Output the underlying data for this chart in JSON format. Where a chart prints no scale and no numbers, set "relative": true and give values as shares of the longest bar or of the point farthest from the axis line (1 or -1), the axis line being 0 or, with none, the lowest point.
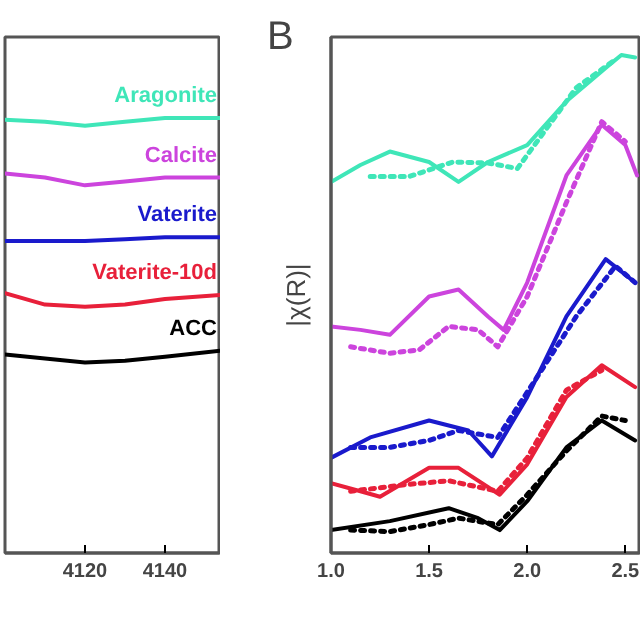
{
  "chart_data": [
    {
      "type": "line",
      "relative": true,
      "tick_labels": "x",
      "grid": false,
      "marker": "none",
      "line_style": "solid",
      "x": [
        4100,
        4110,
        4120,
        4130,
        4140,
        4154
      ],
      "xlim": [
        4100,
        4154
      ],
      "xticks": [
        4120,
        4140
      ],
      "series": [
        {
          "name": "Aragonite",
          "color": "#3fe6b8",
          "values": [
            0.996,
            0.991,
            0.982,
            0.991,
            1.0,
            1.0
          ]
        },
        {
          "name": "Calcite",
          "color": "#cc44dd",
          "values": [
            0.872,
            0.863,
            0.845,
            0.854,
            0.863,
            0.863
          ]
        },
        {
          "name": "Vaterite",
          "color": "#1a1acc",
          "values": [
            0.717,
            0.717,
            0.717,
            0.721,
            0.726,
            0.726
          ]
        },
        {
          "name": "Vaterite-10d",
          "color": "#e8203a",
          "values": [
            0.597,
            0.571,
            0.566,
            0.571,
            0.584,
            0.593
          ]
        },
        {
          "name": "ACC",
          "color": "#000000",
          "values": [
            0.456,
            0.447,
            0.438,
            0.442,
            0.451,
            0.465
          ]
        }
      ]
    },
    {
      "type": "line",
      "relative": true,
      "title": "B",
      "ylabel": "|χ(R)|",
      "tick_labels": "x",
      "grid": false,
      "marker": "none",
      "xlim": [
        1.0,
        2.58
      ],
      "xticks": [
        {
          "value": 1.0,
          "label": "1.0"
        },
        {
          "value": 1.5,
          "label": "1.5"
        },
        {
          "value": 2.0,
          "label": "2.0"
        },
        {
          "value": 2.5,
          "label": "2.5"
        }
      ],
      "series": [
        {
          "color": "#3fe6b8",
          "line_style": "solid",
          "x": [
            1.0,
            1.15,
            1.3,
            1.5,
            1.65,
            1.8,
            2.0,
            2.2,
            2.4,
            2.48,
            2.55
          ],
          "values": [
            0.745,
            0.779,
            0.806,
            0.785,
            0.745,
            0.785,
            0.819,
            0.907,
            0.974,
            1.0,
            0.995
          ]
        },
        {
          "color": "#3fe6b8",
          "line_style": "dotted",
          "x": [
            1.2,
            1.4,
            1.62,
            1.8,
            1.95,
            2.25,
            2.45
          ],
          "values": [
            0.756,
            0.756,
            0.785,
            0.783,
            0.772,
            0.934,
            0.991
          ]
        },
        {
          "color": "#cc44dd",
          "line_style": "solid",
          "x": [
            1.0,
            1.15,
            1.3,
            1.5,
            1.65,
            1.8,
            1.88,
            2.0,
            2.2,
            2.38,
            2.5,
            2.56
          ],
          "values": [
            0.455,
            0.448,
            0.438,
            0.515,
            0.529,
            0.475,
            0.448,
            0.543,
            0.758,
            0.86,
            0.819,
            0.758
          ]
        },
        {
          "color": "#cc44dd",
          "line_style": "dotted",
          "x": [
            1.1,
            1.3,
            1.45,
            1.6,
            1.75,
            1.85,
            2.0,
            2.2,
            2.38,
            2.5
          ],
          "values": [
            0.414,
            0.401,
            0.408,
            0.455,
            0.448,
            0.414,
            0.515,
            0.704,
            0.866,
            0.826
          ]
        },
        {
          "color": "#1a1acc",
          "line_style": "solid",
          "x": [
            1.0,
            1.2,
            1.5,
            1.7,
            1.82,
            2.0,
            2.2,
            2.4,
            2.55
          ],
          "values": [
            0.191,
            0.232,
            0.266,
            0.246,
            0.194,
            0.313,
            0.475,
            0.59,
            0.543
          ]
        },
        {
          "color": "#1a1acc",
          "line_style": "dotted",
          "x": [
            1.1,
            1.3,
            1.5,
            1.65,
            1.85,
            2.05,
            2.25,
            2.45,
            2.55
          ],
          "values": [
            0.212,
            0.212,
            0.226,
            0.246,
            0.232,
            0.353,
            0.475,
            0.576,
            0.543
          ]
        },
        {
          "color": "#e8203a",
          "line_style": "solid",
          "x": [
            1.0,
            1.15,
            1.25,
            1.5,
            1.65,
            1.86,
            2.0,
            2.2,
            2.38,
            2.55
          ],
          "values": [
            0.14,
            0.124,
            0.113,
            0.171,
            0.171,
            0.117,
            0.178,
            0.313,
            0.377,
            0.333
          ]
        },
        {
          "color": "#e8203a",
          "line_style": "dotted",
          "x": [
            1.1,
            1.4,
            1.6,
            1.85,
            2.0,
            2.2,
            2.38
          ],
          "values": [
            0.124,
            0.138,
            0.145,
            0.124,
            0.191,
            0.327,
            0.367
          ]
        },
        {
          "color": "#000000",
          "line_style": "solid",
          "x": [
            1.0,
            1.3,
            1.6,
            1.75,
            1.86,
            2.0,
            2.2,
            2.38,
            2.55
          ],
          "values": [
            0.046,
            0.064,
            0.09,
            0.07,
            0.046,
            0.104,
            0.212,
            0.266,
            0.226
          ]
        },
        {
          "color": "#000000",
          "line_style": "dotted",
          "x": [
            1.1,
            1.3,
            1.5,
            1.65,
            1.85,
            2.0,
            2.2,
            2.38,
            2.5
          ],
          "values": [
            0.046,
            0.043,
            0.057,
            0.07,
            0.057,
            0.117,
            0.205,
            0.275,
            0.266
          ]
        }
      ]
    }
  ]
}
